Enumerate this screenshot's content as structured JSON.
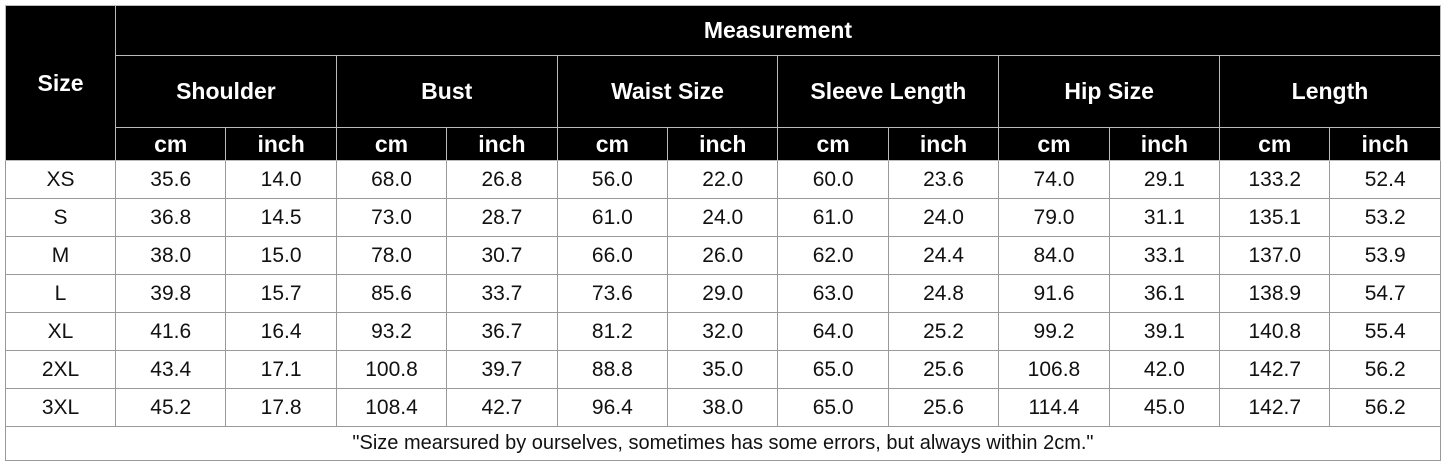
{
  "table": {
    "size_header": "Size",
    "group_header": "Measurement",
    "measures": [
      "Shoulder",
      "Bust",
      "Waist Size",
      "Sleeve Length",
      "Hip Size",
      "Length"
    ],
    "units": [
      "cm",
      "inch"
    ],
    "rows": [
      [
        "XS",
        "35.6",
        "14.0",
        "68.0",
        "26.8",
        "56.0",
        "22.0",
        "60.0",
        "23.6",
        "74.0",
        "29.1",
        "133.2",
        "52.4"
      ],
      [
        "S",
        "36.8",
        "14.5",
        "73.0",
        "28.7",
        "61.0",
        "24.0",
        "61.0",
        "24.0",
        "79.0",
        "31.1",
        "135.1",
        "53.2"
      ],
      [
        "M",
        "38.0",
        "15.0",
        "78.0",
        "30.7",
        "66.0",
        "26.0",
        "62.0",
        "24.4",
        "84.0",
        "33.1",
        "137.0",
        "53.9"
      ],
      [
        "L",
        "39.8",
        "15.7",
        "85.6",
        "33.7",
        "73.6",
        "29.0",
        "63.0",
        "24.8",
        "91.6",
        "36.1",
        "138.9",
        "54.7"
      ],
      [
        "XL",
        "41.6",
        "16.4",
        "93.2",
        "36.7",
        "81.2",
        "32.0",
        "64.0",
        "25.2",
        "99.2",
        "39.1",
        "140.8",
        "55.4"
      ],
      [
        "2XL",
        "43.4",
        "17.1",
        "100.8",
        "39.7",
        "88.8",
        "35.0",
        "65.0",
        "25.6",
        "106.8",
        "42.0",
        "142.7",
        "56.2"
      ],
      [
        "3XL",
        "45.2",
        "17.8",
        "108.4",
        "42.7",
        "96.4",
        "38.0",
        "65.0",
        "25.6",
        "114.4",
        "45.0",
        "142.7",
        "56.2"
      ]
    ],
    "note": "\"Size mearsured by ourselves, sometimes has some errors, but always within 2cm.\""
  }
}
